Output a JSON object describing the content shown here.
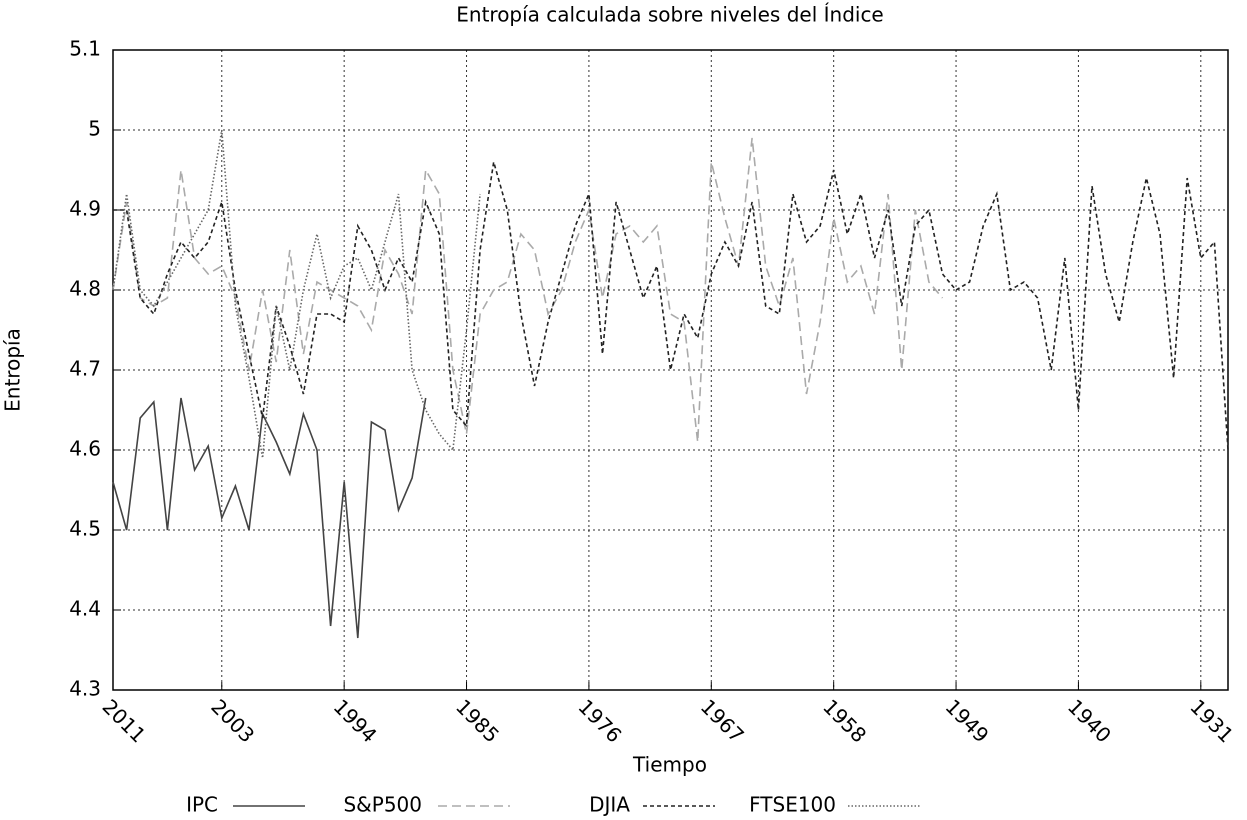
{
  "chart_data": {
    "type": "line",
    "title": "Entropía calculada sobre niveles del Índice",
    "xlabel": "Tiempo",
    "ylabel": "Entropía",
    "x": [
      2011,
      2010,
      2009,
      2008,
      2007,
      2006,
      2005,
      2004,
      2003,
      2002,
      2001,
      2000,
      1999,
      1998,
      1997,
      1996,
      1995,
      1994,
      1993,
      1992,
      1991,
      1990,
      1989,
      1988,
      1987,
      1986,
      1985,
      1984,
      1983,
      1982,
      1981,
      1980,
      1979,
      1978,
      1977,
      1976,
      1975,
      1974,
      1973,
      1972,
      1971,
      1970,
      1969,
      1968,
      1967,
      1966,
      1965,
      1964,
      1963,
      1962,
      1961,
      1960,
      1959,
      1958,
      1957,
      1956,
      1955,
      1954,
      1953,
      1952,
      1951,
      1950,
      1949,
      1948,
      1947,
      1946,
      1945,
      1944,
      1943,
      1942,
      1941,
      1940,
      1939,
      1938,
      1937,
      1936,
      1935,
      1934,
      1933,
      1932,
      1931,
      1930,
      1929
    ],
    "xlim": [
      2011,
      1929
    ],
    "xticks": [
      2011,
      2003,
      1994,
      1985,
      1976,
      1967,
      1958,
      1949,
      1940,
      1931
    ],
    "ylim": [
      4.3,
      5.1
    ],
    "yticks": [
      4.3,
      4.4,
      4.5,
      4.6,
      4.7,
      4.8,
      4.9,
      5,
      5.1
    ],
    "grid": true,
    "series": [
      {
        "name": "IPC",
        "color": "#444444",
        "linestyle": "solid",
        "values": [
          4.56,
          4.5,
          4.64,
          4.66,
          4.5,
          4.665,
          4.575,
          4.605,
          4.515,
          4.555,
          4.5,
          4.645,
          4.61,
          4.57,
          4.645,
          4.6,
          4.38,
          4.56,
          4.365,
          4.635,
          4.625,
          4.525,
          4.565,
          4.665,
          null,
          null,
          null,
          null,
          null,
          null,
          null,
          null,
          null,
          null,
          null,
          null,
          null,
          null,
          null,
          null,
          null,
          null,
          null,
          null,
          null,
          null,
          null,
          null,
          null,
          null,
          null,
          null,
          null,
          null,
          null,
          null,
          null,
          null,
          null,
          null,
          null,
          null,
          null,
          null,
          null,
          null,
          null,
          null,
          null,
          null,
          null,
          null,
          null,
          null,
          null,
          null,
          null,
          null,
          null,
          null,
          null,
          null,
          null
        ]
      },
      {
        "name": "S&P500",
        "color": "#aaaaaa",
        "linestyle": "dashed",
        "values": [
          4.8,
          4.91,
          4.79,
          4.78,
          4.79,
          4.95,
          4.84,
          4.82,
          4.83,
          4.79,
          4.7,
          4.8,
          4.71,
          4.85,
          4.72,
          4.81,
          4.8,
          4.79,
          4.78,
          4.75,
          4.85,
          4.82,
          4.77,
          4.95,
          4.92,
          4.7,
          4.62,
          4.77,
          4.8,
          4.81,
          4.87,
          4.85,
          4.77,
          4.8,
          4.86,
          4.9,
          4.79,
          4.87,
          4.88,
          4.86,
          4.88,
          4.77,
          4.76,
          4.61,
          4.96,
          4.89,
          4.83,
          4.99,
          4.83,
          4.78,
          4.84,
          4.67,
          4.76,
          4.89,
          4.81,
          4.83,
          4.77,
          4.92,
          4.7,
          4.9,
          4.81,
          4.79,
          null,
          null,
          null,
          null,
          null,
          null,
          null,
          null,
          null,
          null,
          null,
          null,
          null,
          null,
          null,
          null,
          null,
          null,
          null,
          null,
          null
        ]
      },
      {
        "name": "DJIA",
        "color": "#222222",
        "linestyle": "short-dashed",
        "values": [
          4.9,
          4.9,
          4.79,
          4.77,
          4.82,
          4.86,
          4.84,
          4.86,
          4.91,
          4.8,
          4.72,
          4.64,
          4.78,
          4.73,
          4.67,
          4.77,
          4.77,
          4.76,
          4.88,
          4.85,
          4.8,
          4.84,
          4.81,
          4.91,
          4.87,
          4.65,
          4.63,
          4.85,
          4.96,
          4.9,
          4.77,
          4.68,
          4.76,
          4.82,
          4.88,
          4.92,
          4.72,
          4.91,
          4.85,
          4.79,
          4.83,
          4.7,
          4.77,
          4.74,
          4.82,
          4.86,
          4.83,
          4.91,
          4.78,
          4.77,
          4.92,
          4.86,
          4.88,
          4.95,
          4.87,
          4.92,
          4.84,
          4.9,
          4.78,
          4.88,
          4.9,
          4.82,
          4.8,
          4.81,
          4.88,
          4.92,
          4.8,
          4.81,
          4.79,
          4.7,
          4.84,
          4.65,
          4.93,
          4.82,
          4.76,
          4.86,
          4.94,
          4.87,
          4.69,
          4.94,
          4.84,
          4.86,
          4.6
        ]
      },
      {
        "name": "FTSE100",
        "color": "#666666",
        "linestyle": "dotted",
        "values": [
          4.8,
          4.92,
          4.8,
          4.78,
          4.81,
          4.84,
          4.87,
          4.9,
          5.0,
          4.78,
          4.69,
          4.59,
          4.78,
          4.7,
          4.8,
          4.87,
          4.79,
          4.83,
          4.84,
          4.8,
          4.86,
          4.92,
          4.7,
          4.65,
          4.62,
          4.6,
          4.75,
          4.92,
          null,
          null,
          null,
          null,
          null,
          null,
          null,
          null,
          null,
          null,
          null,
          null,
          null,
          null,
          null,
          null,
          null,
          null,
          null,
          null,
          null,
          null,
          null,
          null,
          null,
          null,
          null,
          null,
          null,
          null,
          null,
          null,
          null,
          null,
          null,
          null,
          null,
          null,
          null,
          null,
          null,
          null,
          null,
          null,
          null,
          null,
          null,
          null,
          null,
          null,
          null,
          null,
          null,
          null,
          null
        ]
      }
    ]
  }
}
